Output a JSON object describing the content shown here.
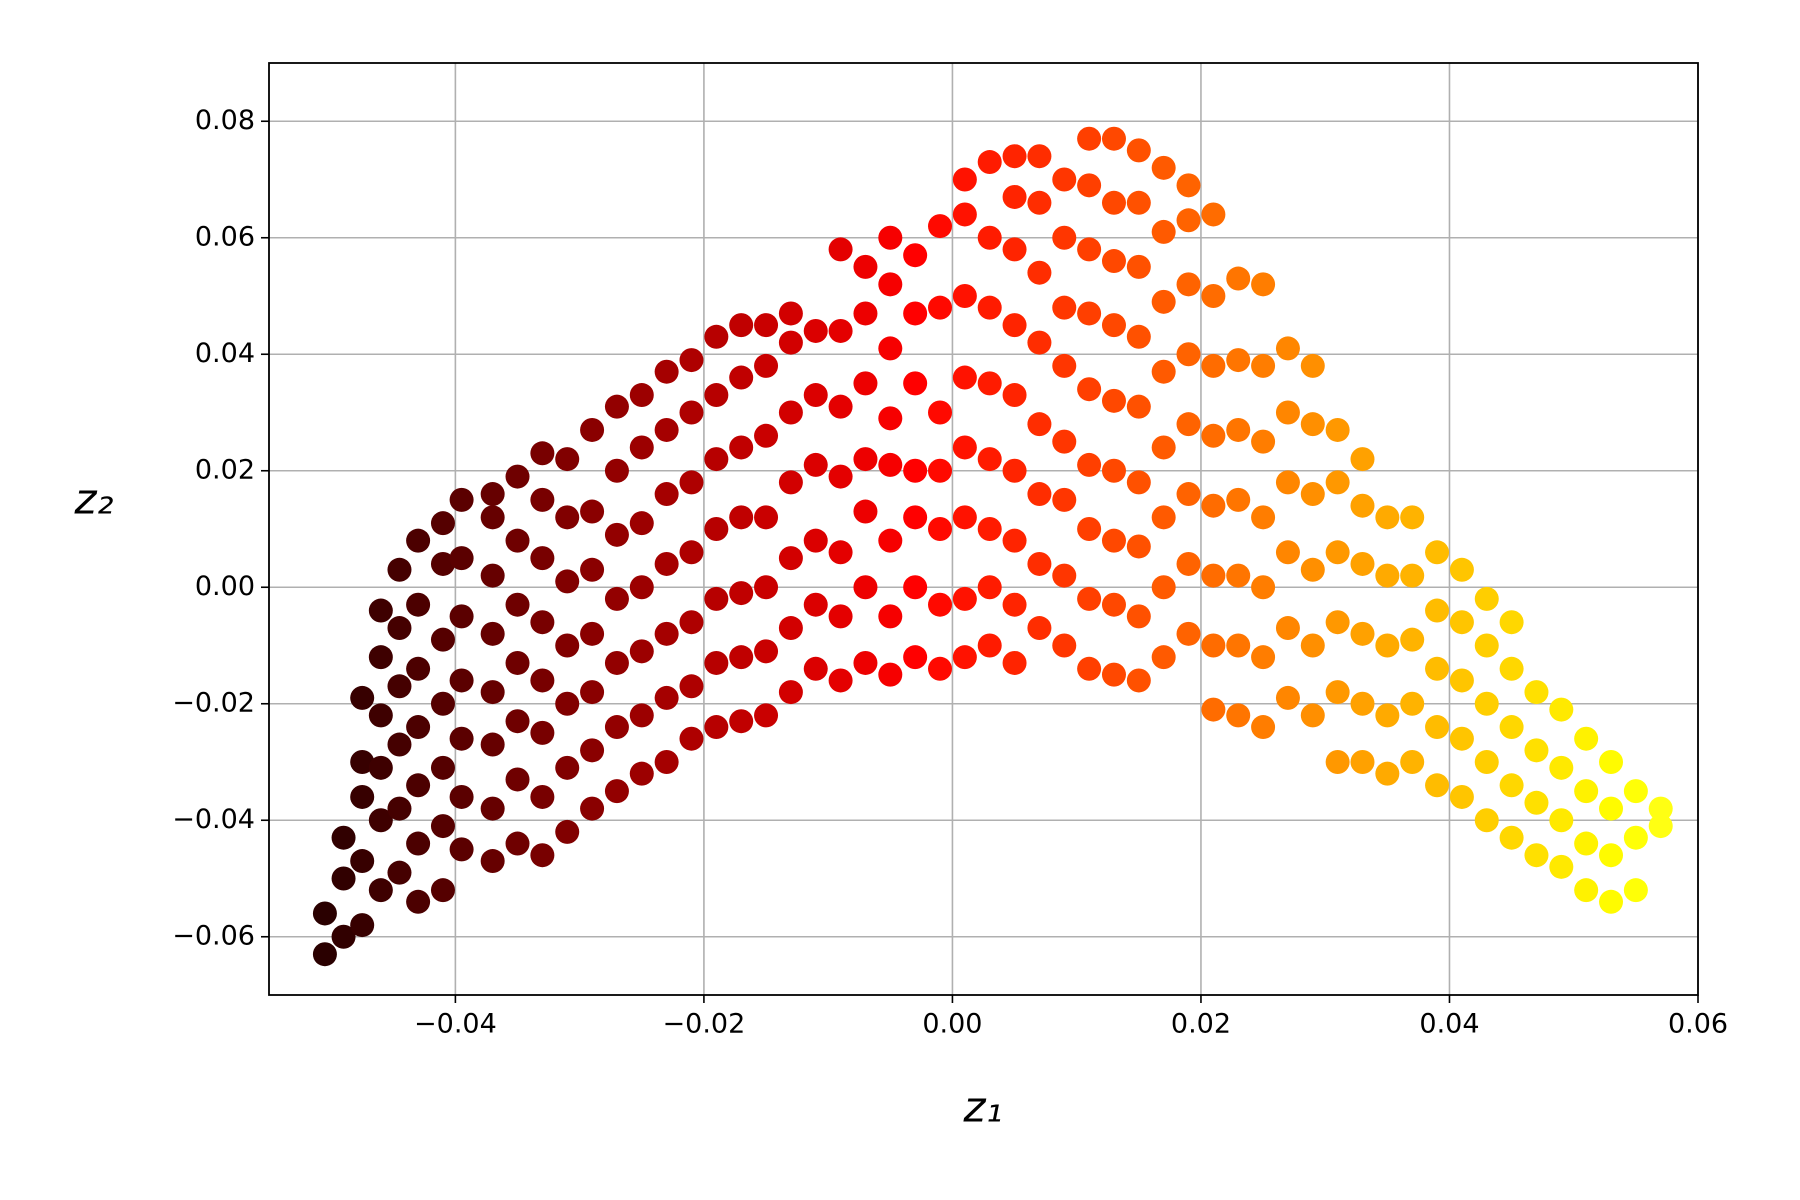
{
  "chart_data": {
    "type": "scatter",
    "colormap": "hot",
    "xlabel": "z₁",
    "ylabel": "z₂",
    "xlim": [
      -0.055,
      0.06
    ],
    "ylim": [
      -0.07,
      0.09
    ],
    "xticks": [
      {
        "value": -0.04,
        "label": "−0.04"
      },
      {
        "value": -0.02,
        "label": "−0.02"
      },
      {
        "value": 0,
        "label": "0.00"
      },
      0.02,
      0.04,
      0.06
    ],
    "yticks": [
      {
        "value": -0.06,
        "label": "−0.06"
      },
      {
        "value": -0.04,
        "label": "−0.04"
      },
      {
        "value": -0.02,
        "label": "−0.02"
      },
      {
        "value": 0,
        "label": "0.00"
      },
      0.02,
      0.04,
      0.06,
      0.08
    ],
    "grid": true,
    "x": [
      -0.0505,
      -0.0505,
      -0.049,
      -0.049,
      -0.049,
      -0.0475,
      -0.0475,
      -0.0475,
      -0.0475,
      -0.0475,
      -0.046,
      -0.046,
      -0.046,
      -0.046,
      -0.046,
      -0.046,
      -0.0445,
      -0.0445,
      -0.0445,
      -0.0445,
      -0.0445,
      -0.0445,
      -0.043,
      -0.043,
      -0.043,
      -0.043,
      -0.043,
      -0.043,
      -0.043,
      -0.041,
      -0.041,
      -0.041,
      -0.041,
      -0.041,
      -0.041,
      -0.041,
      -0.0395,
      -0.0395,
      -0.0395,
      -0.0395,
      -0.0395,
      -0.0395,
      -0.0395,
      -0.037,
      -0.037,
      -0.037,
      -0.037,
      -0.037,
      -0.037,
      -0.037,
      -0.037,
      -0.035,
      -0.035,
      -0.035,
      -0.035,
      -0.035,
      -0.035,
      -0.035,
      -0.033,
      -0.033,
      -0.033,
      -0.033,
      -0.033,
      -0.033,
      -0.033,
      -0.033,
      -0.031,
      -0.031,
      -0.031,
      -0.031,
      -0.031,
      -0.031,
      -0.031,
      -0.029,
      -0.029,
      -0.029,
      -0.029,
      -0.029,
      -0.029,
      -0.029,
      -0.027,
      -0.027,
      -0.027,
      -0.027,
      -0.027,
      -0.027,
      -0.027,
      -0.025,
      -0.025,
      -0.025,
      -0.025,
      -0.025,
      -0.025,
      -0.025,
      -0.023,
      -0.023,
      -0.023,
      -0.023,
      -0.023,
      -0.023,
      -0.023,
      -0.021,
      -0.021,
      -0.021,
      -0.021,
      -0.021,
      -0.021,
      -0.021,
      -0.019,
      -0.019,
      -0.019,
      -0.019,
      -0.019,
      -0.019,
      -0.019,
      -0.017,
      -0.017,
      -0.017,
      -0.017,
      -0.017,
      -0.017,
      -0.017,
      -0.015,
      -0.015,
      -0.015,
      -0.015,
      -0.015,
      -0.015,
      -0.015,
      -0.013,
      -0.013,
      -0.013,
      -0.013,
      -0.013,
      -0.013,
      -0.013,
      -0.011,
      -0.011,
      -0.011,
      -0.011,
      -0.011,
      -0.011,
      -0.009,
      -0.009,
      -0.009,
      -0.009,
      -0.009,
      -0.009,
      -0.009,
      -0.007,
      -0.007,
      -0.007,
      -0.007,
      -0.007,
      -0.007,
      -0.007,
      -0.005,
      -0.005,
      -0.005,
      -0.005,
      -0.005,
      -0.005,
      -0.005,
      -0.005,
      -0.003,
      -0.003,
      -0.003,
      -0.003,
      -0.003,
      -0.003,
      -0.003,
      -0.001,
      -0.001,
      -0.001,
      -0.001,
      -0.001,
      -0.001,
      -0.001,
      0.001,
      0.001,
      0.001,
      0.001,
      0.001,
      0.001,
      0.001,
      0.001,
      0.003,
      0.003,
      0.003,
      0.003,
      0.003,
      0.003,
      0.003,
      0.003,
      0.005,
      0.005,
      0.005,
      0.005,
      0.005,
      0.005,
      0.005,
      0.005,
      0.005,
      0.007,
      0.007,
      0.007,
      0.007,
      0.007,
      0.007,
      0.007,
      0.007,
      0.009,
      0.009,
      0.009,
      0.009,
      0.009,
      0.009,
      0.009,
      0.009,
      0.011,
      0.011,
      0.011,
      0.011,
      0.011,
      0.011,
      0.011,
      0.011,
      0.011,
      0.013,
      0.013,
      0.013,
      0.013,
      0.013,
      0.013,
      0.013,
      0.013,
      0.013,
      0.015,
      0.015,
      0.015,
      0.015,
      0.015,
      0.015,
      0.015,
      0.015,
      0.015,
      0.017,
      0.017,
      0.017,
      0.017,
      0.017,
      0.017,
      0.017,
      0.017,
      0.019,
      0.019,
      0.019,
      0.019,
      0.019,
      0.019,
      0.019,
      0.019,
      0.021,
      0.021,
      0.021,
      0.021,
      0.021,
      0.021,
      0.021,
      0.021,
      0.023,
      0.023,
      0.023,
      0.023,
      0.023,
      0.023,
      0.023,
      0.025,
      0.025,
      0.025,
      0.025,
      0.025,
      0.025,
      0.025,
      0.027,
      0.027,
      0.027,
      0.027,
      0.027,
      0.027,
      0.029,
      0.029,
      0.029,
      0.029,
      0.029,
      0.029,
      0.031,
      0.031,
      0.031,
      0.031,
      0.031,
      0.031,
      0.033,
      0.033,
      0.033,
      0.033,
      0.033,
      0.033,
      0.035,
      0.035,
      0.035,
      0.035,
      0.035,
      0.037,
      0.037,
      0.037,
      0.037,
      0.037,
      0.039,
      0.039,
      0.039,
      0.039,
      0.039,
      0.041,
      0.041,
      0.041,
      0.041,
      0.041,
      0.043,
      0.043,
      0.043,
      0.043,
      0.043,
      0.045,
      0.045,
      0.045,
      0.045,
      0.045,
      0.047,
      0.047,
      0.047,
      0.047,
      0.049,
      0.049,
      0.049,
      0.049,
      0.051,
      0.051,
      0.051,
      0.051,
      0.053,
      0.053,
      0.053,
      0.053,
      0.055,
      0.055,
      0.055,
      0.057,
      0.057
    ],
    "values": [
      -0.063,
      -0.056,
      -0.06,
      -0.05,
      -0.043,
      -0.058,
      -0.047,
      -0.036,
      -0.03,
      -0.019,
      -0.052,
      -0.04,
      -0.031,
      -0.022,
      -0.012,
      -0.004,
      -0.049,
      -0.038,
      -0.027,
      -0.017,
      -0.007,
      0.003,
      -0.054,
      -0.044,
      -0.034,
      -0.024,
      -0.014,
      -0.003,
      0.008,
      -0.052,
      -0.041,
      -0.031,
      -0.02,
      -0.009,
      0.004,
      0.011,
      -0.045,
      -0.036,
      -0.026,
      -0.016,
      -0.005,
      0.005,
      0.015,
      -0.047,
      -0.038,
      -0.027,
      -0.018,
      -0.008,
      0.002,
      0.012,
      0.016,
      -0.044,
      -0.033,
      -0.023,
      -0.013,
      -0.003,
      0.008,
      0.019,
      -0.046,
      -0.036,
      -0.025,
      -0.016,
      -0.006,
      0.005,
      0.015,
      0.023,
      -0.042,
      -0.031,
      -0.02,
      -0.01,
      0.001,
      0.012,
      0.022,
      -0.038,
      -0.028,
      -0.018,
      -0.008,
      0.003,
      0.013,
      0.027,
      -0.035,
      -0.024,
      -0.013,
      -0.002,
      0.009,
      0.02,
      0.031,
      -0.032,
      -0.022,
      -0.011,
      0,
      0.011,
      0.024,
      0.033,
      -0.03,
      -0.019,
      -0.008,
      0.004,
      0.016,
      0.027,
      0.037,
      -0.026,
      -0.017,
      -0.006,
      0.006,
      0.018,
      0.03,
      0.039,
      -0.024,
      -0.013,
      -0.002,
      0.01,
      0.022,
      0.033,
      0.043,
      -0.023,
      -0.012,
      -0.001,
      0.012,
      0.024,
      0.036,
      0.045,
      -0.022,
      -0.011,
      0,
      0.012,
      0.026,
      0.038,
      0.045,
      -0.018,
      -0.007,
      0.005,
      0.018,
      0.03,
      0.042,
      0.047,
      -0.014,
      -0.003,
      0.008,
      0.021,
      0.033,
      0.044,
      -0.016,
      -0.005,
      0.006,
      0.019,
      0.031,
      0.044,
      0.058,
      -0.013,
      0,
      0.013,
      0.022,
      0.035,
      0.047,
      0.055,
      -0.015,
      -0.005,
      0.008,
      0.021,
      0.029,
      0.041,
      0.052,
      0.06,
      -0.012,
      0,
      0.012,
      0.02,
      0.035,
      0.047,
      0.057,
      -0.014,
      -0.003,
      0.01,
      0.02,
      0.03,
      0.048,
      0.062,
      -0.012,
      -0.002,
      0.012,
      0.024,
      0.036,
      0.05,
      0.064,
      0.07,
      -0.01,
      0,
      0.01,
      0.022,
      0.035,
      0.048,
      0.06,
      0.073,
      -0.013,
      -0.003,
      0.008,
      0.02,
      0.033,
      0.045,
      0.058,
      0.067,
      0.074,
      -0.007,
      0.004,
      0.016,
      0.028,
      0.042,
      0.054,
      0.066,
      0.074,
      -0.01,
      0.002,
      0.015,
      0.025,
      0.038,
      0.048,
      0.06,
      0.07,
      -0.014,
      -0.002,
      0.01,
      0.021,
      0.034,
      0.047,
      0.058,
      0.069,
      0.077,
      -0.015,
      -0.003,
      0.008,
      0.02,
      0.032,
      0.045,
      0.056,
      0.066,
      0.077,
      -0.016,
      -0.005,
      0.007,
      0.018,
      0.031,
      0.043,
      0.055,
      0.066,
      0.075,
      -0.012,
      0,
      0.012,
      0.024,
      0.037,
      0.049,
      0.061,
      0.072,
      -0.008,
      0.004,
      0.016,
      0.028,
      0.04,
      0.052,
      0.063,
      0.069,
      -0.021,
      -0.01,
      0.002,
      0.014,
      0.026,
      0.038,
      0.05,
      0.064,
      -0.022,
      -0.01,
      0.002,
      0.015,
      0.027,
      0.039,
      0.053,
      -0.024,
      -0.012,
      0,
      0.012,
      0.025,
      0.038,
      0.052,
      -0.019,
      -0.007,
      0.006,
      0.018,
      0.03,
      0.041,
      -0.022,
      -0.01,
      0.003,
      0.016,
      0.028,
      0.038,
      -0.03,
      -0.018,
      -0.006,
      0.006,
      0.018,
      0.027,
      -0.03,
      -0.02,
      -0.008,
      0.004,
      0.014,
      0.022,
      -0.032,
      -0.022,
      -0.01,
      0.002,
      0.012,
      -0.03,
      -0.02,
      -0.009,
      0.002,
      0.012,
      -0.034,
      -0.024,
      -0.014,
      -0.004,
      0.006,
      -0.036,
      -0.026,
      -0.016,
      -0.006,
      0.003,
      -0.04,
      -0.03,
      -0.02,
      -0.01,
      -0.002,
      -0.043,
      -0.034,
      -0.024,
      -0.014,
      -0.006,
      -0.046,
      -0.037,
      -0.028,
      -0.018,
      -0.048,
      -0.04,
      -0.031,
      -0.021,
      -0.052,
      -0.044,
      -0.035,
      -0.026,
      -0.054,
      -0.046,
      -0.038,
      -0.03,
      -0.052,
      -0.043,
      -0.035,
      -0.041,
      -0.038
    ]
  }
}
